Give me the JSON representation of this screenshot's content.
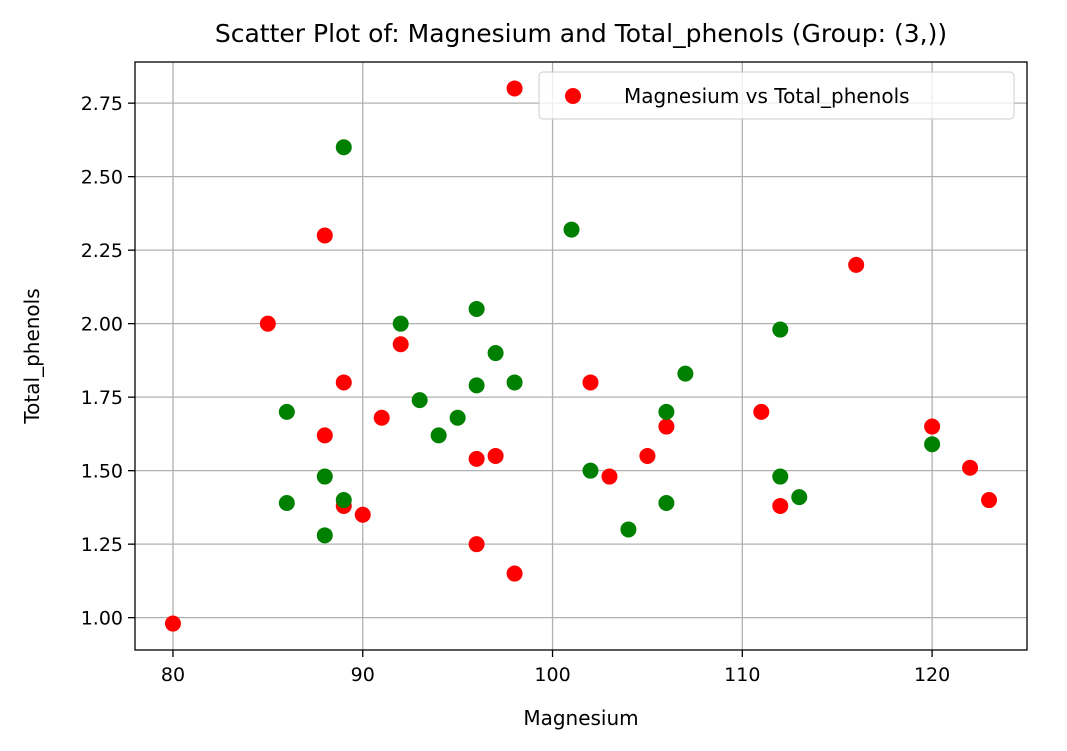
{
  "chart_data": {
    "type": "scatter",
    "title": "Scatter Plot of: Magnesium and Total_phenols (Group: (3,))",
    "xlabel": "Magnesium",
    "ylabel": "Total_phenols",
    "xlim": [
      78,
      125
    ],
    "ylim": [
      0.89,
      2.89
    ],
    "xticks": [
      80,
      90,
      100,
      110,
      120
    ],
    "yticks": [
      1.0,
      1.25,
      1.5,
      1.75,
      2.0,
      2.25,
      2.5,
      2.75
    ],
    "ytick_labels": [
      "1.00",
      "1.25",
      "1.50",
      "1.75",
      "2.00",
      "2.25",
      "2.50",
      "2.75"
    ],
    "grid": true,
    "legend": {
      "position": "top-right",
      "entries": [
        "Magnesium vs Total_phenols"
      ]
    },
    "series": [
      {
        "name": "Magnesium vs Total_phenols",
        "color": "#ff0000",
        "points": [
          [
            80,
            0.98
          ],
          [
            85,
            2.0
          ],
          [
            88,
            2.3
          ],
          [
            88,
            1.62
          ],
          [
            89,
            1.8
          ],
          [
            89,
            1.38
          ],
          [
            90,
            1.35
          ],
          [
            91,
            1.68
          ],
          [
            92,
            1.93
          ],
          [
            96,
            1.54
          ],
          [
            96,
            1.25
          ],
          [
            97,
            1.55
          ],
          [
            98,
            2.8
          ],
          [
            98,
            1.15
          ],
          [
            102,
            1.8
          ],
          [
            103,
            1.48
          ],
          [
            105,
            1.55
          ],
          [
            106,
            1.65
          ],
          [
            111,
            1.7
          ],
          [
            112,
            1.38
          ],
          [
            116,
            2.2
          ],
          [
            120,
            1.65
          ],
          [
            122,
            1.51
          ],
          [
            123,
            1.4
          ]
        ]
      },
      {
        "color": "#008000",
        "points": [
          [
            86,
            1.7
          ],
          [
            86,
            1.39
          ],
          [
            88,
            1.48
          ],
          [
            88,
            1.28
          ],
          [
            89,
            2.6
          ],
          [
            89,
            1.4
          ],
          [
            92,
            2.0
          ],
          [
            93,
            1.74
          ],
          [
            94,
            1.62
          ],
          [
            95,
            1.68
          ],
          [
            96,
            2.05
          ],
          [
            96,
            1.79
          ],
          [
            97,
            1.9
          ],
          [
            98,
            1.8
          ],
          [
            101,
            2.32
          ],
          [
            102,
            1.5
          ],
          [
            104,
            1.3
          ],
          [
            106,
            1.7
          ],
          [
            106,
            1.39
          ],
          [
            107,
            1.83
          ],
          [
            112,
            1.98
          ],
          [
            112,
            1.48
          ],
          [
            113,
            1.41
          ],
          [
            120,
            1.59
          ]
        ]
      }
    ]
  }
}
